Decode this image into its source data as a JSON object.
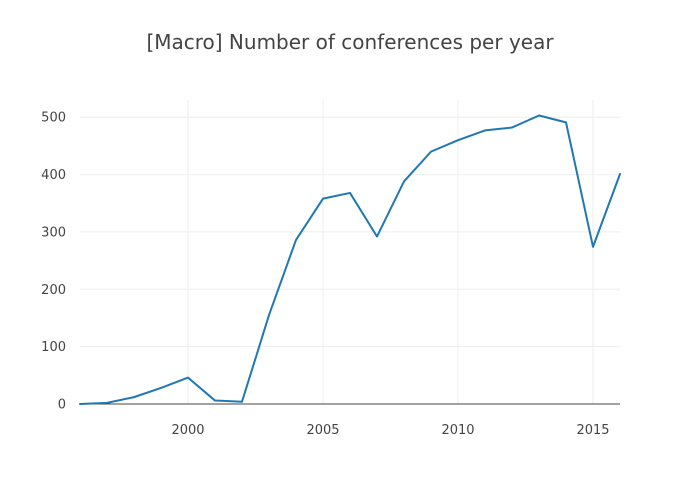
{
  "chart_data": {
    "type": "line",
    "title": "[Macro] Number of conferences per year",
    "xlabel": "",
    "ylabel": "",
    "x": [
      1996,
      1997,
      1998,
      1999,
      2000,
      2001,
      2002,
      2003,
      2004,
      2005,
      2006,
      2007,
      2008,
      2009,
      2010,
      2011,
      2012,
      2013,
      2014,
      2015,
      2016
    ],
    "series": [
      {
        "values": [
          0,
          2,
          12,
          28,
          46,
          6,
          4,
          155,
          286,
          358,
          368,
          292,
          388,
          440,
          460,
          477,
          482,
          503,
          491,
          274,
          401
        ]
      }
    ],
    "xlim": [
      1996,
      2016
    ],
    "ylim": [
      0,
      530
    ],
    "x_ticks": [
      2000,
      2005,
      2010,
      2015
    ],
    "y_ticks": [
      0,
      100,
      200,
      300,
      400,
      500
    ],
    "grid": true,
    "legend": "none",
    "colors": {
      "line": "#1f77b4",
      "grid": "#eeeeee",
      "zeroline": "#444444",
      "text": "#444444"
    }
  }
}
